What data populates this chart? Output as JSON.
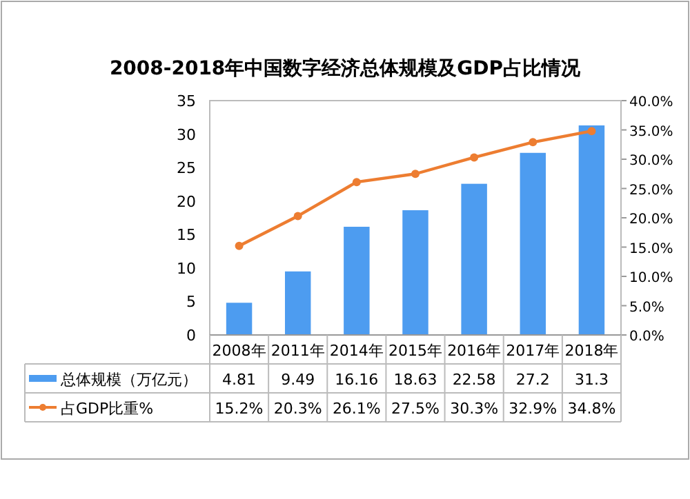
{
  "chart_data": {
    "type": "bar",
    "title": "2008-2018年中国数字经济总体规模及GDP占比情况",
    "categories": [
      "2008年",
      "2011年",
      "2014年",
      "2015年",
      "2016年",
      "2017年",
      "2018年"
    ],
    "series": [
      {
        "name": "总体规模（万亿元）",
        "color": "#4d9cf0",
        "values": [
          4.81,
          9.49,
          16.16,
          18.63,
          22.58,
          27.2,
          31.3
        ],
        "value_labels": [
          "4.81",
          "9.49",
          "16.16",
          "18.63",
          "22.58",
          "27.2",
          "31.3"
        ]
      },
      {
        "name": "占GDP比重%",
        "type": "line",
        "axis": "y2",
        "color": "#ed7d31",
        "marker": "circle",
        "values": [
          15.2,
          20.3,
          26.1,
          27.5,
          30.3,
          32.9,
          34.8
        ],
        "value_labels": [
          "15.2%",
          "20.3%",
          "26.1%",
          "27.5%",
          "30.3%",
          "32.9%",
          "34.8%"
        ]
      }
    ],
    "ylim": [
      0,
      35
    ],
    "yticks": [
      0,
      5,
      10,
      15,
      20,
      25,
      30,
      35
    ],
    "y2lim": [
      0,
      40
    ],
    "y2ticks": [
      {
        "value": 0,
        "label": "0.0%"
      },
      {
        "value": 5,
        "label": "5.0%"
      },
      {
        "value": 10,
        "label": "10.0%"
      },
      {
        "value": 15,
        "label": "15.0%"
      },
      {
        "value": 20,
        "label": "20.0%"
      },
      {
        "value": 25,
        "label": "25.0%"
      },
      {
        "value": 30,
        "label": "30.0%"
      },
      {
        "value": 35,
        "label": "35.0%"
      },
      {
        "value": 40,
        "label": "40.0%"
      }
    ],
    "legend": "bottom"
  }
}
